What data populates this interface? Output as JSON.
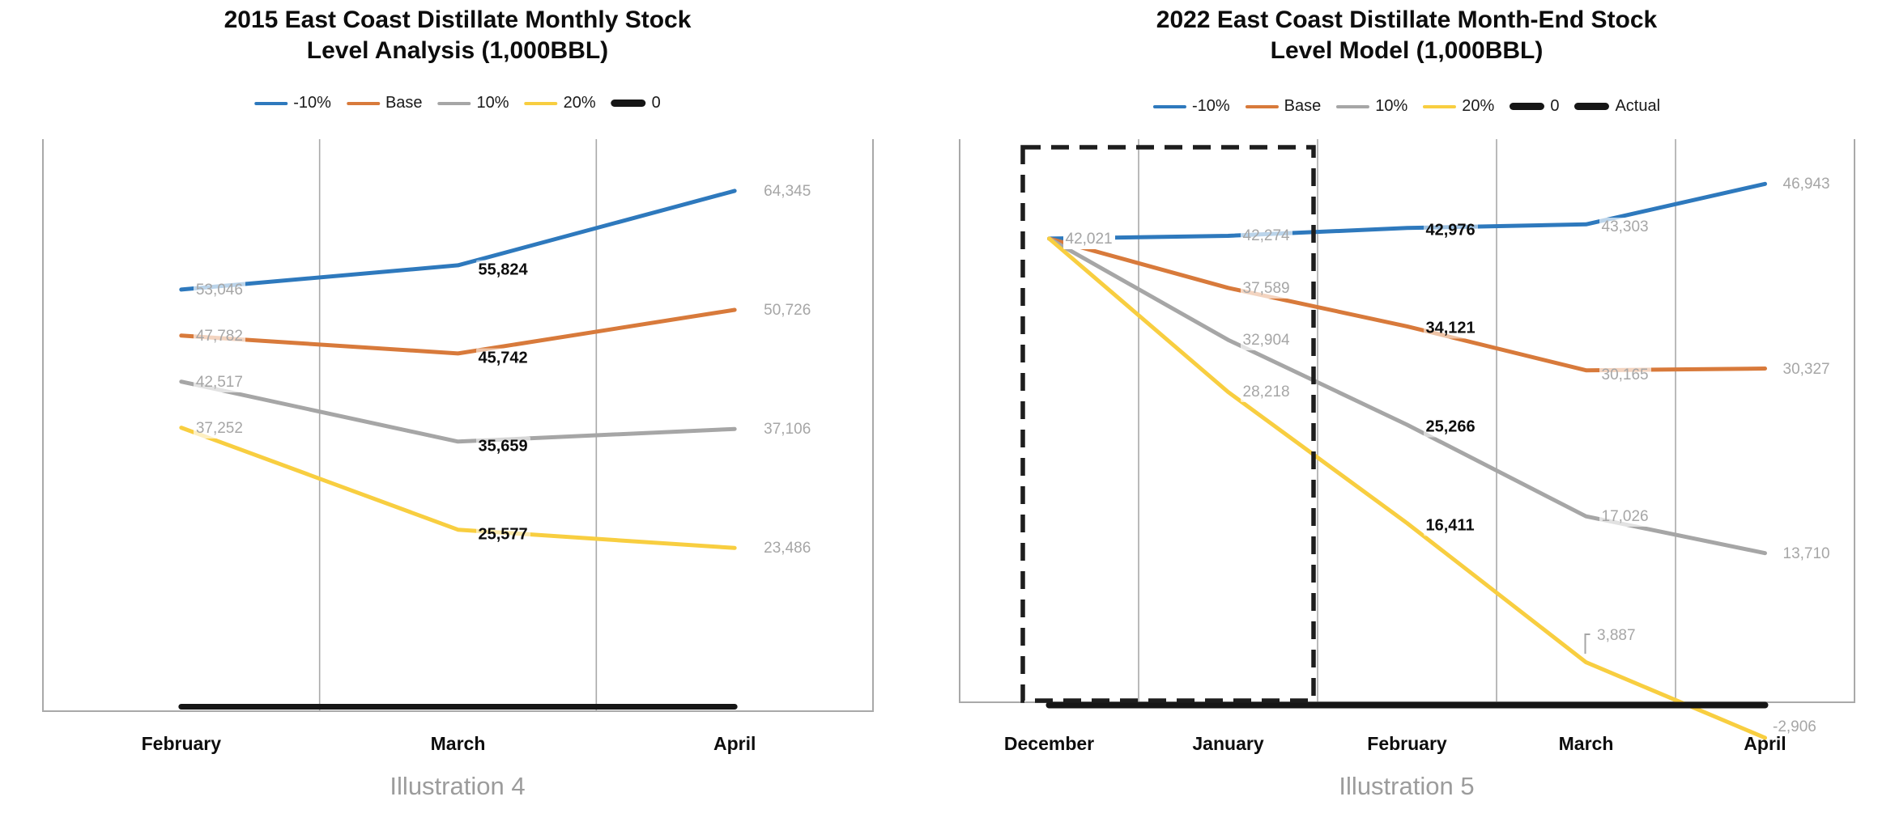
{
  "page": {
    "background": "#ffffff"
  },
  "colors": {
    "blue": "#2e79bd",
    "orange": "#d87a3b",
    "gray": "#a6a6a6",
    "yellow": "#f8ce40",
    "black": "#161616",
    "label_gray": "#a6a6a6",
    "frame_gray": "#a9a9a9",
    "caption_gray": "#9c9c9c"
  },
  "chart_data": [
    {
      "type": "line",
      "title": "2015 East Coast Distillate Monthly Stock Level Analysis (1,000BBL)",
      "title_line1": "2015 East Coast Distillate Monthly Stock",
      "title_line2": "Level Analysis (1,000BBL)",
      "caption": "Illustration 4",
      "categories": [
        "February",
        "March",
        "April"
      ],
      "legend": [
        {
          "name": "-10%",
          "color_key": "blue",
          "thick": false
        },
        {
          "name": "Base",
          "color_key": "orange",
          "thick": false
        },
        {
          "name": "10%",
          "color_key": "gray",
          "thick": false
        },
        {
          "name": "20%",
          "color_key": "yellow",
          "thick": false
        },
        {
          "name": "0",
          "color_key": "black",
          "thick": true
        }
      ],
      "series": [
        {
          "name": "-10%",
          "color_key": "blue",
          "values": [
            53046,
            55824,
            64345
          ]
        },
        {
          "name": "Base",
          "color_key": "orange",
          "values": [
            47782,
            45742,
            50726
          ]
        },
        {
          "name": "10%",
          "color_key": "gray",
          "values": [
            42517,
            35659,
            37106
          ]
        },
        {
          "name": "20%",
          "color_key": "yellow",
          "values": [
            37252,
            25577,
            23486
          ]
        },
        {
          "name": "0",
          "color_key": "black",
          "values": [
            0,
            0,
            0
          ]
        }
      ],
      "label_styles": [
        "gray",
        "bold",
        "gray"
      ],
      "grid": "vertical-category-boundaries",
      "legend_position": "top"
    },
    {
      "type": "line",
      "title": "2022 East Coast Distillate Month-End Stock Level Model (1,000BBL)",
      "title_line1": "2022 East Coast Distillate Month-End Stock",
      "title_line2": "Level Model (1,000BBL)",
      "caption": "Illustration 5",
      "categories": [
        "December",
        "January",
        "February",
        "March",
        "April"
      ],
      "legend": [
        {
          "name": "-10%",
          "color_key": "blue",
          "thick": false
        },
        {
          "name": "Base",
          "color_key": "orange",
          "thick": false
        },
        {
          "name": "10%",
          "color_key": "gray",
          "thick": false
        },
        {
          "name": "20%",
          "color_key": "yellow",
          "thick": false
        },
        {
          "name": "0",
          "color_key": "black",
          "thick": true
        },
        {
          "name": "Actual",
          "color_key": "black",
          "thick": true
        }
      ],
      "series": [
        {
          "name": "-10%",
          "color_key": "blue",
          "values": [
            42021,
            42274,
            42976,
            43303,
            46943
          ]
        },
        {
          "name": "Base",
          "color_key": "orange",
          "values": [
            42021,
            37589,
            34121,
            30165,
            30327
          ]
        },
        {
          "name": "10%",
          "color_key": "gray",
          "values": [
            42021,
            32904,
            25266,
            17026,
            13710
          ]
        },
        {
          "name": "20%",
          "color_key": "yellow",
          "values": [
            42021,
            28218,
            16411,
            3887,
            -2906
          ]
        },
        {
          "name": "0",
          "color_key": "black",
          "values": [
            0,
            0,
            0,
            0,
            0
          ]
        },
        {
          "name": "Actual",
          "color_key": "black",
          "values": null
        }
      ],
      "label_styles": [
        "gray",
        "gray",
        "bold",
        "gray",
        "gray"
      ],
      "highlight_box": {
        "categories": [
          "December",
          "January"
        ],
        "style": "dashed-black"
      },
      "grid": "vertical-category-boundaries",
      "legend_position": "top"
    }
  ]
}
